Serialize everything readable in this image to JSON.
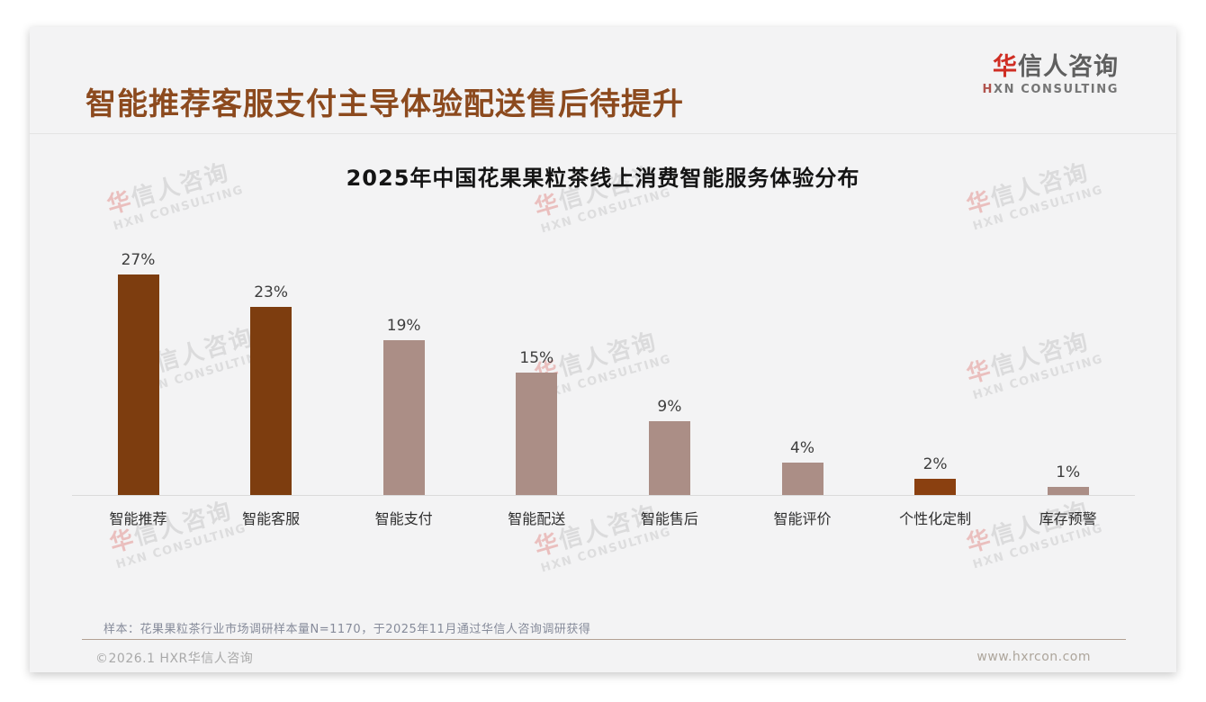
{
  "header": {
    "title": "智能推荐客服支付主导体验配送售后待提升",
    "logo": {
      "zh_first": "华",
      "zh_rest": "信人咨询",
      "en_first": "H",
      "en_rest": "XN CONSULTING"
    }
  },
  "watermark": {
    "zh_first": "华",
    "zh_rest": "信人咨询",
    "en": "HXN CONSULTING"
  },
  "chart_data": {
    "type": "bar",
    "title": "2025年中国花果果粒茶线上消费智能服务体验分布",
    "categories": [
      "智能推荐",
      "智能客服",
      "智能支付",
      "智能配送",
      "智能售后",
      "智能评价",
      "个性化定制",
      "库存预警"
    ],
    "values": [
      27,
      23,
      19,
      15,
      9,
      4,
      2,
      1
    ],
    "labels": [
      "27%",
      "23%",
      "19%",
      "15%",
      "9%",
      "4%",
      "2%",
      "1%"
    ],
    "bar_colors": [
      "#7d3d0f",
      "#7d3d0f",
      "#ab8e86",
      "#ab8e86",
      "#ab8e86",
      "#ab8e86",
      "#8a4010",
      "#ab8e86"
    ],
    "xlabel": "",
    "ylabel": "",
    "ylim": [
      0,
      30
    ],
    "grid": false,
    "legend": "none",
    "accent_dark": "#7d3d0f",
    "accent_light": "#ab8e86"
  },
  "footnote": {
    "sample_note": "样本：花果果粒茶行业市场调研样本量N=1170，于2025年11月通过华信人咨询调研获得",
    "copyright": "©2026.1 HXR华信人咨询",
    "website": "www.hxrcon.com"
  }
}
